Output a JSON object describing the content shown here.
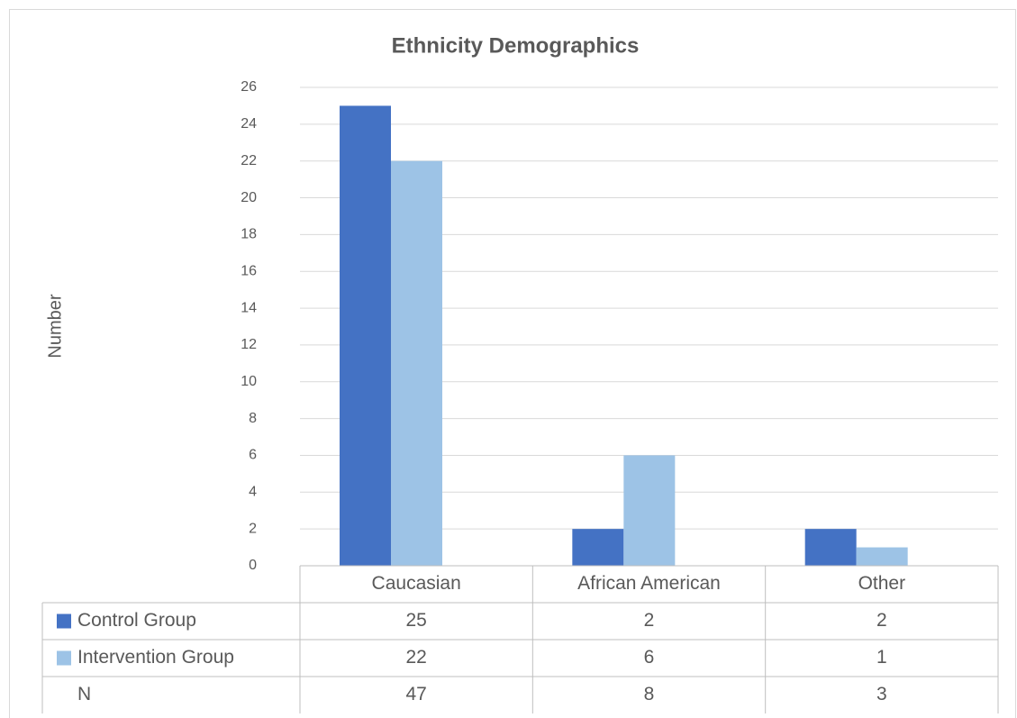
{
  "chart_data": {
    "type": "bar",
    "title": "Ethnicity Demographics",
    "y_label": "Number",
    "categories": [
      "Caucasian",
      "African American",
      "Other"
    ],
    "series": [
      {
        "name": "Control Group",
        "color": "#4472c4",
        "values": [
          25,
          2,
          2
        ]
      },
      {
        "name": "Intervention Group",
        "color": "#9dc3e6",
        "values": [
          22,
          6,
          1
        ]
      }
    ],
    "ylim": [
      0,
      26
    ],
    "yticks": [
      0,
      2,
      4,
      6,
      8,
      10,
      12,
      14,
      16,
      18,
      20,
      22,
      24,
      26
    ],
    "grid": true,
    "data_table": {
      "rows": [
        {
          "name": "N",
          "values": [
            47,
            8,
            3
          ]
        }
      ]
    }
  }
}
